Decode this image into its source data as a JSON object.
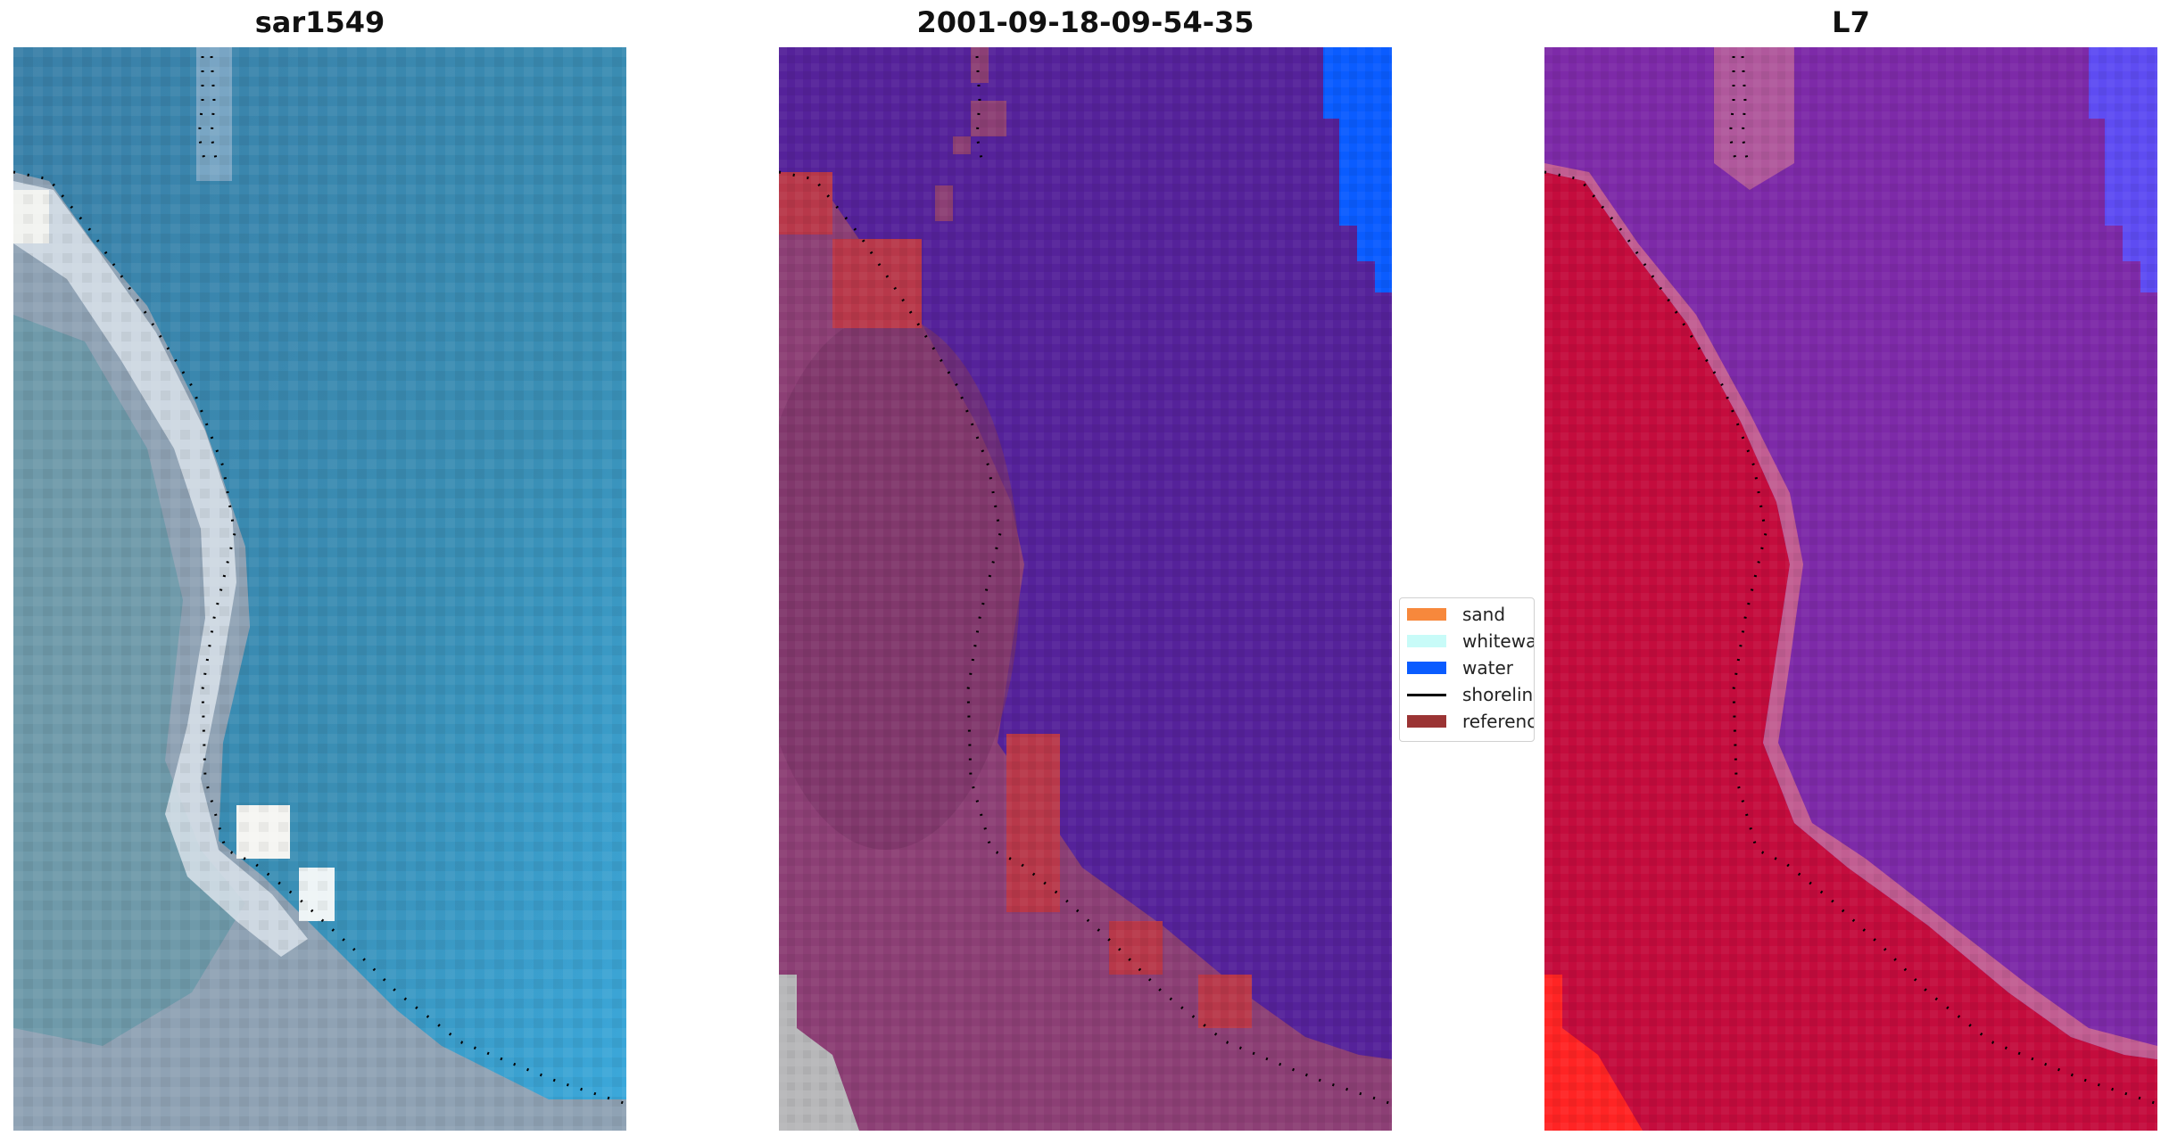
{
  "panels": [
    {
      "title": "sar1549"
    },
    {
      "title": "2001-09-18-09-54-35"
    },
    {
      "title": "L7"
    }
  ],
  "legend": {
    "items": [
      {
        "label": "sand",
        "color": "#f7883c",
        "kind": "patch"
      },
      {
        "label": "whitewater",
        "color": "#c8fbf8",
        "kind": "patch"
      },
      {
        "label": "water",
        "color": "#0a5cff",
        "kind": "patch"
      },
      {
        "label": "shoreline",
        "color": "#000000",
        "kind": "line"
      },
      {
        "label": "reference",
        "color": "#9b3434",
        "kind": "patch"
      }
    ]
  },
  "colors": {
    "rgb_water": "#3b86ad",
    "rgb_land": "#9aa6b8",
    "rgb_whitewater": "#e6eef2",
    "class_water_bg": "#55229a",
    "class_land": "#8c3f75",
    "false_color_land": "#c40c3d",
    "false_color_water": "#7d2aa8"
  }
}
